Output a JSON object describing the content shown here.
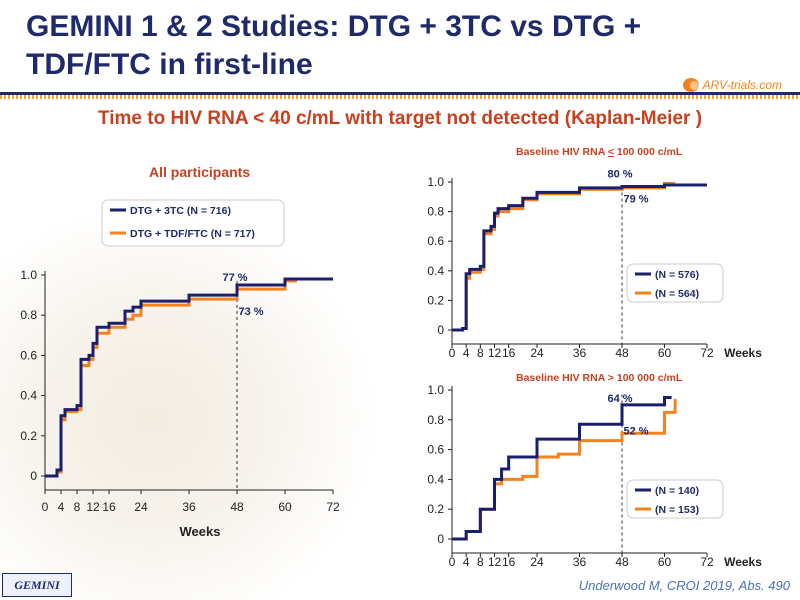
{
  "slide": {
    "title": "GEMINI 1 & 2 Studies: DTG + 3TC vs DTG + TDF/FTC in first-line",
    "subtitle": "Time to HIV RNA < 40 c/mL with target not detected (Kaplan-Meier )",
    "logo_text": "ARV-trials.com",
    "footer_tag": "GEMINI",
    "citation": "Underwood M, CROI 2019, Abs. 490"
  },
  "colors": {
    "dtg_3tc": "#1a1f6b",
    "dtg_tdf_ftc": "#f58220",
    "title": "#1f2a6b",
    "accent": "#c8401e"
  },
  "chart_data": [
    {
      "type": "line",
      "title": "All participants",
      "xlabel": "Weeks",
      "ylabel": "",
      "xlim": [
        0,
        72
      ],
      "ylim": [
        0,
        1.0
      ],
      "x_ticks": [
        "0",
        "4",
        "8",
        "12",
        "16",
        "24",
        "36",
        "48",
        "60",
        "72"
      ],
      "x_tick_values": [
        0,
        4,
        8,
        12,
        16,
        24,
        36,
        48,
        60,
        72
      ],
      "y_ticks": [
        "0",
        "0.2",
        "0.4",
        "0.6",
        "0.8",
        "1.0"
      ],
      "legend_position": "top-left",
      "series": [
        {
          "name": "DTG + 3TC (N = 716)",
          "color": "#1a1f6b",
          "points": [
            [
              0,
              0
            ],
            [
              3,
              0.03
            ],
            [
              4,
              0.3
            ],
            [
              5,
              0.33
            ],
            [
              8,
              0.35
            ],
            [
              9,
              0.58
            ],
            [
              11,
              0.6
            ],
            [
              12,
              0.66
            ],
            [
              13,
              0.74
            ],
            [
              16,
              0.76
            ],
            [
              20,
              0.82
            ],
            [
              22,
              0.84
            ],
            [
              24,
              0.87
            ],
            [
              36,
              0.9
            ],
            [
              48,
              0.95
            ],
            [
              60,
              0.98
            ],
            [
              72,
              0.98
            ]
          ]
        },
        {
          "name": "DTG + TDF/FTC (N = 717)",
          "color": "#f58220",
          "points": [
            [
              0,
              0
            ],
            [
              3,
              0.02
            ],
            [
              4,
              0.28
            ],
            [
              5,
              0.32
            ],
            [
              8,
              0.33
            ],
            [
              9,
              0.55
            ],
            [
              11,
              0.58
            ],
            [
              12,
              0.64
            ],
            [
              13,
              0.71
            ],
            [
              16,
              0.74
            ],
            [
              20,
              0.78
            ],
            [
              22,
              0.8
            ],
            [
              24,
              0.85
            ],
            [
              36,
              0.88
            ],
            [
              48,
              0.93
            ],
            [
              60,
              0.97
            ],
            [
              63,
              0.97
            ]
          ]
        }
      ],
      "annotations": [
        {
          "text": "77 %",
          "x": 48,
          "y": 0.97,
          "series": 0
        },
        {
          "text": "73 %",
          "x": 48,
          "y": 0.8,
          "series": 1
        }
      ],
      "reference_line_x": 48
    },
    {
      "type": "line",
      "title": "Baseline HIV RNA < 100 000 c/mL",
      "title_prefix": "Baseline HIV RNA ",
      "title_underlined": "<",
      "title_suffix": " 100 000 c/mL",
      "xlabel": "Weeks",
      "ylabel": "",
      "xlim": [
        0,
        72
      ],
      "ylim": [
        0,
        1.0
      ],
      "x_ticks": [
        "0",
        "4",
        "8",
        "12",
        "16",
        "24",
        "36",
        "48",
        "60",
        "72"
      ],
      "x_tick_values": [
        0,
        4,
        8,
        12,
        16,
        24,
        36,
        48,
        60,
        72
      ],
      "y_ticks": [
        "0",
        "0.2",
        "0.4",
        "0.6",
        "0.8",
        "1.0"
      ],
      "legend_position": "bottom-right",
      "series": [
        {
          "name": "(N = 576)",
          "color": "#1a1f6b",
          "points": [
            [
              0,
              0
            ],
            [
              3,
              0.01
            ],
            [
              4,
              0.38
            ],
            [
              5,
              0.41
            ],
            [
              8,
              0.43
            ],
            [
              9,
              0.67
            ],
            [
              11,
              0.7
            ],
            [
              12,
              0.79
            ],
            [
              13,
              0.82
            ],
            [
              16,
              0.84
            ],
            [
              20,
              0.89
            ],
            [
              24,
              0.93
            ],
            [
              36,
              0.96
            ],
            [
              48,
              0.97
            ],
            [
              60,
              0.98
            ],
            [
              72,
              0.98
            ]
          ]
        },
        {
          "name": "(N = 564)",
          "color": "#f58220",
          "points": [
            [
              0,
              0
            ],
            [
              3,
              0.01
            ],
            [
              4,
              0.35
            ],
            [
              5,
              0.39
            ],
            [
              8,
              0.41
            ],
            [
              9,
              0.65
            ],
            [
              11,
              0.68
            ],
            [
              12,
              0.77
            ],
            [
              13,
              0.8
            ],
            [
              16,
              0.82
            ],
            [
              20,
              0.88
            ],
            [
              24,
              0.92
            ],
            [
              36,
              0.95
            ],
            [
              48,
              0.96
            ],
            [
              60,
              0.99
            ],
            [
              63,
              0.99
            ]
          ]
        }
      ],
      "annotations": [
        {
          "text": "80 %",
          "x": 48,
          "y": 1.03,
          "series": 0
        },
        {
          "text": "79 %",
          "x": 48,
          "y": 0.86,
          "series": 1
        }
      ],
      "reference_line_x": 48
    },
    {
      "type": "line",
      "title": "Baseline HIV RNA > 100 000 c/mL",
      "xlabel": "Weeks",
      "ylabel": "",
      "xlim": [
        0,
        72
      ],
      "ylim": [
        0,
        1.0
      ],
      "x_ticks": [
        "0",
        "4",
        "8",
        "12",
        "16",
        "24",
        "36",
        "48",
        "60",
        "72"
      ],
      "x_tick_values": [
        0,
        4,
        8,
        12,
        16,
        24,
        36,
        48,
        60,
        72
      ],
      "y_ticks": [
        "0",
        "0.2",
        "0.4",
        "0.6",
        "0.8",
        "1.0"
      ],
      "legend_position": "bottom-right",
      "series": [
        {
          "name": "(N = 140)",
          "color": "#1a1f6b",
          "points": [
            [
              0,
              0
            ],
            [
              4,
              0.05
            ],
            [
              8,
              0.2
            ],
            [
              11,
              0.2
            ],
            [
              12,
              0.4
            ],
            [
              14,
              0.47
            ],
            [
              16,
              0.55
            ],
            [
              24,
              0.67
            ],
            [
              36,
              0.77
            ],
            [
              48,
              0.9
            ],
            [
              60,
              0.95
            ],
            [
              62,
              0.95
            ]
          ]
        },
        {
          "name": "(N = 153)",
          "color": "#f58220",
          "points": [
            [
              0,
              0
            ],
            [
              4,
              0.05
            ],
            [
              8,
              0.2
            ],
            [
              11,
              0.2
            ],
            [
              12,
              0.37
            ],
            [
              14,
              0.4
            ],
            [
              20,
              0.42
            ],
            [
              24,
              0.55
            ],
            [
              30,
              0.57
            ],
            [
              36,
              0.66
            ],
            [
              48,
              0.71
            ],
            [
              60,
              0.85
            ],
            [
              63,
              0.94
            ]
          ]
        }
      ],
      "annotations": [
        {
          "text": "64 %",
          "x": 48,
          "y": 0.92,
          "series": 0
        },
        {
          "text": "52 %",
          "x": 48,
          "y": 0.7,
          "series": 1
        }
      ],
      "reference_line_x": 48
    }
  ]
}
